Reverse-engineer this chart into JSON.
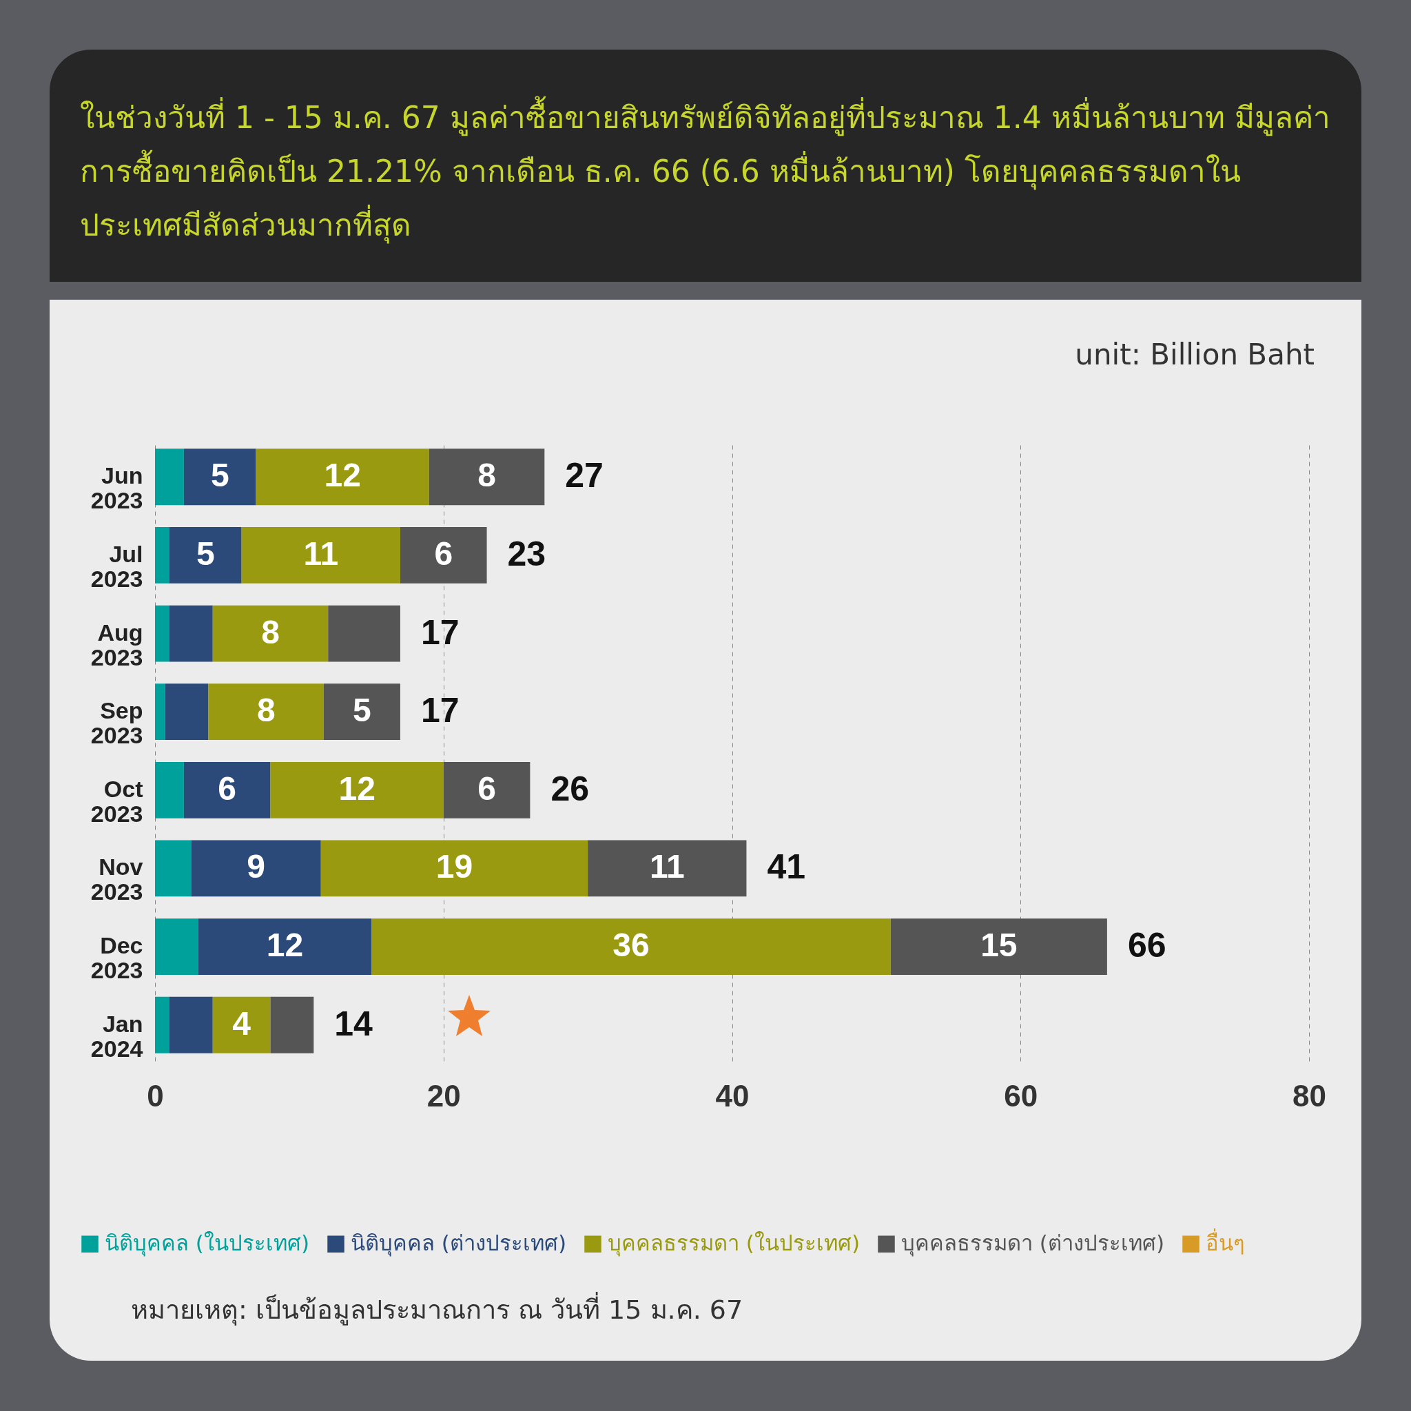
{
  "chart_data": {
    "type": "bar",
    "orientation": "horizontal",
    "stacked": true,
    "title": "ในช่วงวันที่ 1 - 15 ม.ค. 67 มูลค่าซื้อขายสินทรัพย์ดิจิทัลอยู่ที่ประมาณ 1.4 หมื่นล้านบาท มีมูลค่าการซื้อขายคิดเป็น 21.21% จากเดือน ธ.ค. 66 (6.6 หมื่นล้านบาท) โดยบุคคลธรรมดาในประเทศมีสัดส่วนมากที่สุด",
    "subtitle": "unit: Billion Baht",
    "categories": [
      "Jun 2023",
      "Jul 2023",
      "Aug 2023",
      "Sep 2023",
      "Oct 2023",
      "Nov 2023",
      "Dec 2023",
      "Jan 2024"
    ],
    "series": [
      {
        "name": "นิติบุคคล (ในประเทศ)",
        "color": "#00a19a",
        "values": [
          2,
          1,
          1,
          0.7,
          2,
          2.5,
          3,
          1
        ],
        "value_labels": [
          null,
          null,
          null,
          null,
          null,
          null,
          null,
          null
        ]
      },
      {
        "name": "นิติบุคคล (ต่างประเทศ)",
        "color": "#2b4a7a",
        "values": [
          5,
          5,
          3,
          3,
          6,
          9,
          12,
          3
        ],
        "value_labels": [
          "5",
          "5",
          null,
          null,
          "6",
          "9",
          "12",
          null
        ]
      },
      {
        "name": "บุคคลธรรมดา (ในประเทศ)",
        "color": "#999a10",
        "values": [
          12,
          11,
          8,
          8,
          12,
          18.5,
          36,
          4
        ],
        "value_labels": [
          "12",
          "11",
          "8",
          "8",
          "12",
          "19",
          "36",
          "4"
        ]
      },
      {
        "name": "บุคคลธรรมดา (ต่างประเทศ)",
        "color": "#555555",
        "values": [
          8,
          6,
          5,
          5.3,
          6,
          11,
          15,
          3
        ],
        "value_labels": [
          "8",
          "6",
          null,
          "5",
          "6",
          "11",
          "15",
          null
        ]
      },
      {
        "name": "อื่นๆ",
        "color": "#d89b25",
        "values": [
          null,
          null,
          null,
          null,
          null,
          null,
          null,
          null
        ]
      }
    ],
    "totals": [
      "27",
      "23",
      "17",
      "17",
      "26",
      "41",
      "66",
      "14"
    ],
    "xlim": [
      0,
      80
    ],
    "xticks": [
      0,
      20,
      40,
      60,
      80
    ],
    "grid": "x",
    "legend": "bottom",
    "annotations": [
      "หมายเหตุ: เป็นข้อมูลประมาณการ ณ วันที่ 15 ม.ค. 67"
    ]
  }
}
